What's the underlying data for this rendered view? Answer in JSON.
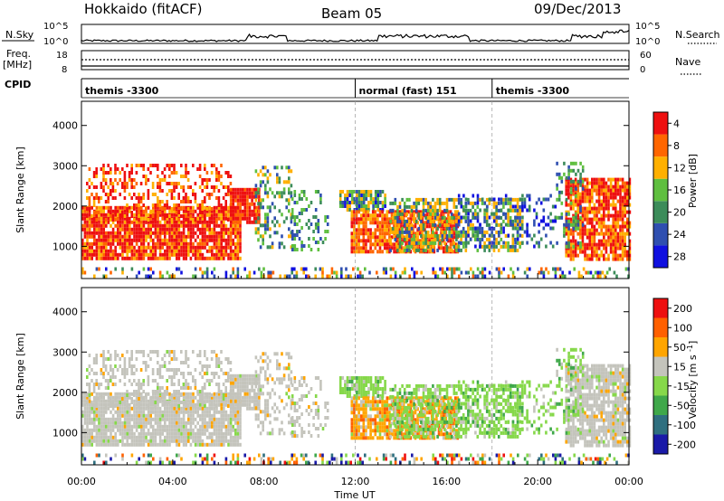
{
  "header": {
    "left_title": "Hokkaido (fitACF)",
    "center_title": "Beam 05",
    "right_title": "09/Dec/2013"
  },
  "nsky_panel": {
    "left_label": "N.Sky",
    "right_label": "N.Search",
    "tick_top": "10^5",
    "tick_bottom": "10^0",
    "right_tick_top": "10^5",
    "right_tick_bottom": "10^0"
  },
  "freq_panel": {
    "label_line1": "Freq.",
    "label_line2": "[MHz]",
    "left_ticks": [
      "18",
      "8"
    ],
    "right_ticks": [
      "60",
      "0"
    ],
    "right_label": "Nave"
  },
  "cpid_panel": {
    "label": "CPID",
    "segments": [
      {
        "label": "themis -3300",
        "start_hour": 0
      },
      {
        "label": "normal (fast) 151",
        "start_hour": 12
      },
      {
        "label": "themis -3300",
        "start_hour": 18
      }
    ]
  },
  "time_axis": {
    "ticks": [
      "00:00",
      "04:00",
      "08:00",
      "12:00",
      "16:00",
      "20:00",
      "00:00"
    ],
    "label": "Time UT"
  },
  "chart_data": [
    {
      "type": "heatmap",
      "name": "power",
      "ylabel": "Slant Range [km]",
      "yticks": [
        1000,
        2000,
        3000,
        4000
      ],
      "ylim": [
        200,
        4600
      ],
      "xlim": [
        0,
        24
      ],
      "colorbar": {
        "label": "Power [dB]",
        "ticks": [
          "4",
          "8",
          "12",
          "16",
          "20",
          "24",
          "28"
        ],
        "colors": [
          "#1010e0",
          "#2f4fb0",
          "#3c8c5a",
          "#5fbf3f",
          "#ffb000",
          "#ff6600",
          "#ee1010"
        ]
      }
    },
    {
      "type": "heatmap",
      "name": "velocity",
      "ylabel": "Slant Range [km]",
      "yticks": [
        1000,
        2000,
        3000,
        4000
      ],
      "ylim": [
        200,
        4600
      ],
      "xlim": [
        0,
        24
      ],
      "colorbar": {
        "label": "Velocity [m s^-1]",
        "ticks": [
          "200",
          "100",
          "50",
          "15",
          "-15",
          "-50",
          "-100",
          "-200"
        ],
        "colors": [
          "#1a1aa8",
          "#2f6f7f",
          "#3fa84a",
          "#86d84a",
          "#c4c4bc",
          "#ffa500",
          "#ff6000",
          "#ee1010"
        ]
      }
    }
  ]
}
